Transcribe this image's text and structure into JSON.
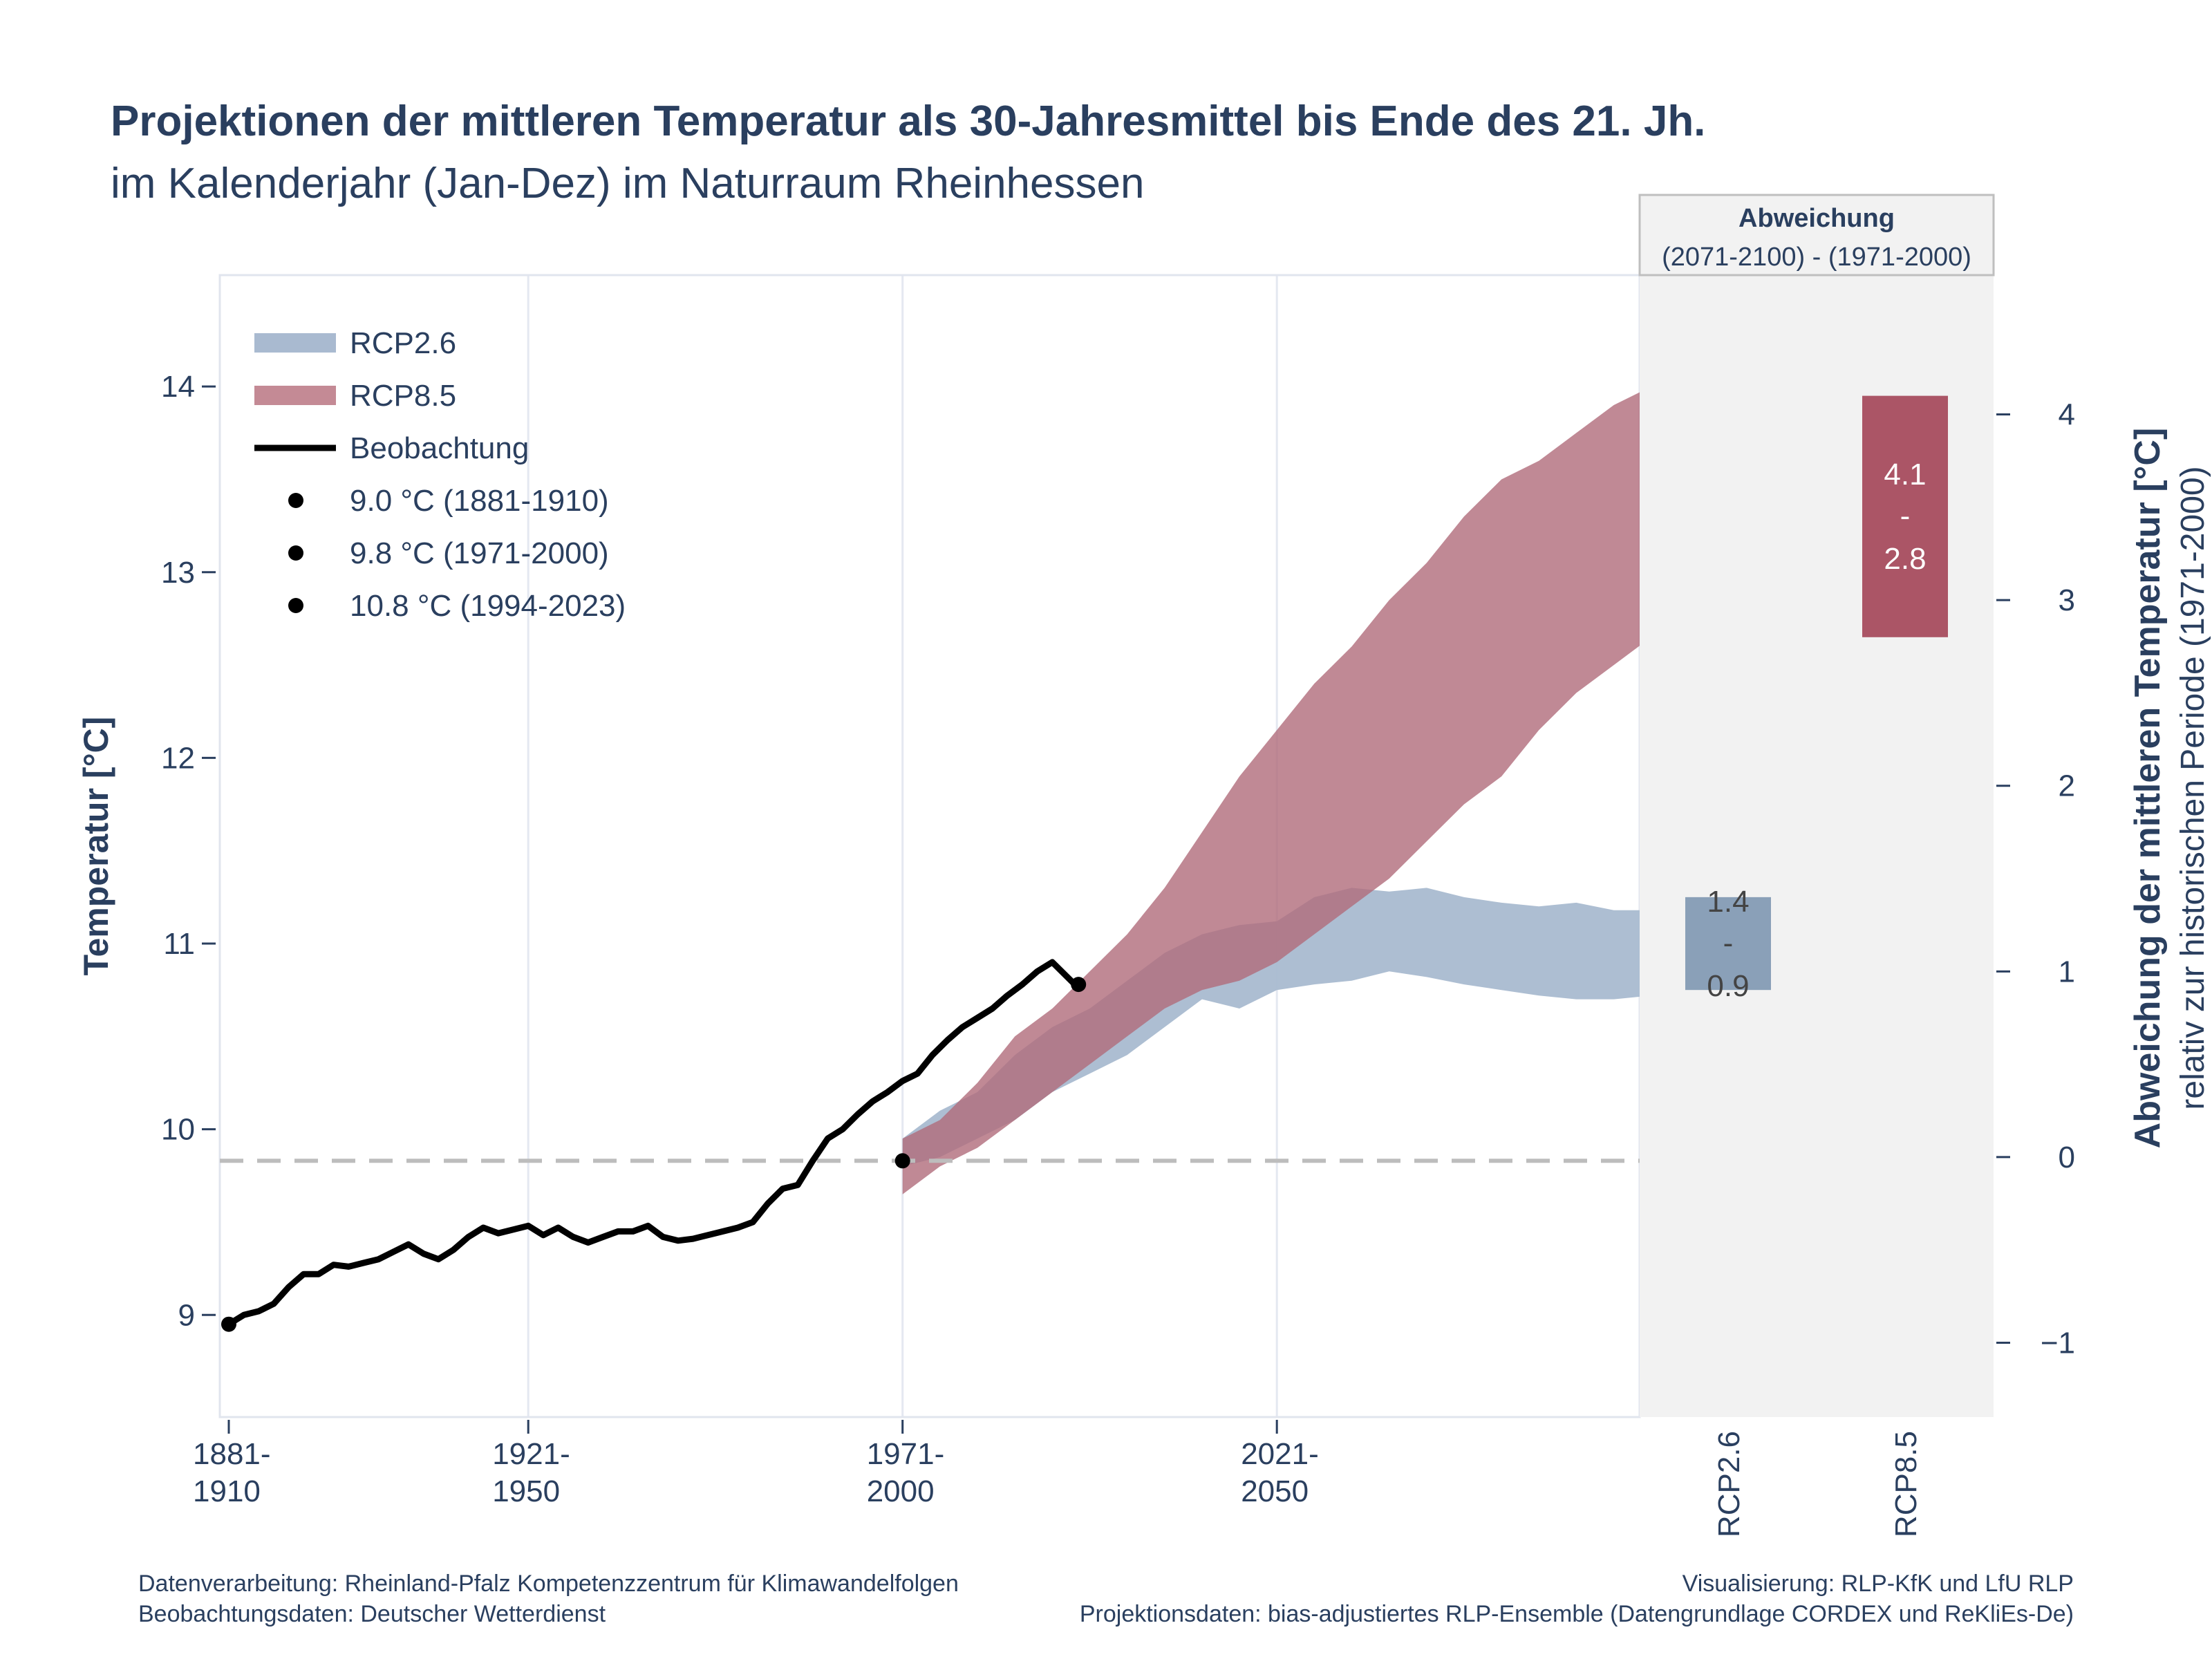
{
  "chart_data": {
    "type": "area",
    "title": "Projektionen der mittleren Temperatur als 30-Jahresmittel bis Ende des 21. Jh.",
    "subtitle": "im Kalenderjahr (Jan-Dez) im Naturraum Rheinhessen",
    "ylabel": "Temperatur [°C]",
    "y2label": "Abweichung der mittleren Temperatur [°C]",
    "y2sublabel": "relativ zur historischen Periode (1971-2000)",
    "ylim": [
      8.45,
      14.6
    ],
    "y_ticks": [
      9,
      10,
      11,
      12,
      13,
      14
    ],
    "y2lim": [
      -1.4,
      4.75
    ],
    "y2_ticks": [
      -1,
      0,
      1,
      2,
      3,
      4
    ],
    "xlim": [
      1895,
      2085
    ],
    "x_ticks": [
      {
        "x": 1895,
        "line1": "1881-",
        "line2": "1910"
      },
      {
        "x": 1935,
        "line1": "1921-",
        "line2": "1950"
      },
      {
        "x": 1985,
        "line1": "1971-",
        "line2": "2000"
      },
      {
        "x": 2035,
        "line1": "2021-",
        "line2": "2050"
      }
    ],
    "grid": true,
    "legend_position": "top-left",
    "reference_line": {
      "y": 9.83,
      "style": "dashed"
    },
    "legend": [
      {
        "kind": "band",
        "label": "RCP2.6",
        "color": "#a9bad0"
      },
      {
        "kind": "band",
        "label": "RCP8.5",
        "color": "#c48a95"
      },
      {
        "kind": "line",
        "label": "Beobachtung",
        "color": "#000000"
      },
      {
        "kind": "dot",
        "label": "9.0 °C (1881-1910)"
      },
      {
        "kind": "dot",
        "label": "9.8 °C (1971-2000)"
      },
      {
        "kind": "dot",
        "label": "10.8 °C (1994-2023)"
      }
    ],
    "observation": {
      "name": "Beobachtung",
      "x": [
        1895,
        1897,
        1899,
        1901,
        1903,
        1905,
        1907,
        1909,
        1911,
        1913,
        1915,
        1917,
        1919,
        1921,
        1923,
        1925,
        1927,
        1929,
        1931,
        1933,
        1935,
        1937,
        1939,
        1941,
        1943,
        1945,
        1947,
        1949,
        1951,
        1953,
        1955,
        1957,
        1959,
        1961,
        1963,
        1965,
        1967,
        1969,
        1971,
        1973,
        1975,
        1977,
        1979,
        1981,
        1983,
        1985,
        1987,
        1989,
        1991,
        1993,
        1995,
        1997,
        1999,
        2001,
        2003,
        2005,
        2008
      ],
      "y": [
        8.95,
        9.0,
        9.02,
        9.06,
        9.15,
        9.22,
        9.22,
        9.27,
        9.26,
        9.28,
        9.3,
        9.34,
        9.38,
        9.33,
        9.3,
        9.35,
        9.42,
        9.47,
        9.44,
        9.46,
        9.48,
        9.43,
        9.47,
        9.42,
        9.39,
        9.42,
        9.45,
        9.45,
        9.48,
        9.42,
        9.4,
        9.41,
        9.43,
        9.45,
        9.47,
        9.5,
        9.6,
        9.68,
        9.7,
        9.83,
        9.95,
        10.0,
        10.08,
        10.15,
        10.2,
        10.26,
        10.3,
        10.4,
        10.48,
        10.55,
        10.6,
        10.65,
        10.72,
        10.78,
        10.85,
        10.9,
        10.78
      ]
    },
    "observation_points": [
      {
        "x": 1895,
        "y": 8.95
      },
      {
        "x": 1985,
        "y": 9.83
      },
      {
        "x": 2008.5,
        "y": 10.78
      }
    ],
    "series": [
      {
        "name": "RCP2.6",
        "color": "#a9bad0",
        "x": [
          1985,
          1990,
          1995,
          2000,
          2005,
          2010,
          2015,
          2020,
          2025,
          2030,
          2035,
          2040,
          2045,
          2050,
          2055,
          2060,
          2065,
          2070,
          2075,
          2080,
          2085
        ],
        "upper": [
          9.95,
          10.1,
          10.2,
          10.4,
          10.55,
          10.65,
          10.8,
          10.95,
          11.05,
          11.1,
          11.12,
          11.25,
          11.3,
          11.28,
          11.3,
          11.25,
          11.22,
          11.2,
          11.22,
          11.18,
          11.18
        ],
        "lower": [
          9.8,
          9.85,
          9.95,
          10.05,
          10.2,
          10.3,
          10.4,
          10.55,
          10.7,
          10.65,
          10.75,
          10.78,
          10.8,
          10.85,
          10.82,
          10.78,
          10.75,
          10.72,
          10.7,
          10.7,
          10.72
        ]
      },
      {
        "name": "RCP8.5",
        "color": "#b06c7a",
        "x": [
          1985,
          1990,
          1995,
          2000,
          2005,
          2010,
          2015,
          2020,
          2025,
          2030,
          2035,
          2040,
          2045,
          2050,
          2055,
          2060,
          2065,
          2070,
          2075,
          2080,
          2085
        ],
        "upper": [
          9.95,
          10.05,
          10.25,
          10.5,
          10.65,
          10.85,
          11.05,
          11.3,
          11.6,
          11.9,
          12.15,
          12.4,
          12.6,
          12.85,
          13.05,
          13.3,
          13.5,
          13.6,
          13.75,
          13.9,
          14.0
        ],
        "lower": [
          9.65,
          9.8,
          9.9,
          10.05,
          10.2,
          10.35,
          10.5,
          10.65,
          10.75,
          10.8,
          10.9,
          11.05,
          11.2,
          11.35,
          11.55,
          11.75,
          11.9,
          12.15,
          12.35,
          12.5,
          12.65
        ]
      }
    ],
    "side_panel": {
      "title": "Abweichung",
      "subtitle": "(2071-2100) - (1971-2000)",
      "bars": [
        {
          "category": "RCP2.6",
          "low": 0.9,
          "high": 1.4,
          "color": "#8aa0b8",
          "label_high": "1.4",
          "label_sep": "-",
          "label_low": "0.9",
          "label_color": "#444444"
        },
        {
          "category": "RCP8.5",
          "low": 2.8,
          "high": 4.1,
          "color": "#ab5566",
          "label_high": "4.1",
          "label_sep": "-",
          "label_low": "2.8",
          "label_color": "#ffffff"
        }
      ]
    },
    "footer": {
      "left_line1": "Datenverarbeitung: Rheinland-Pfalz Kompetenzzentrum für Klimawandelfolgen",
      "left_line2": "Beobachtungsdaten:  Deutscher Wetterdienst",
      "right_line1": "Visualisierung: RLP-KfK und LfU RLP",
      "right_line2": "Projektionsdaten: bias-adjustiertes RLP-Ensemble (Datengrundlage CORDEX und ReKliEs-De)"
    }
  }
}
